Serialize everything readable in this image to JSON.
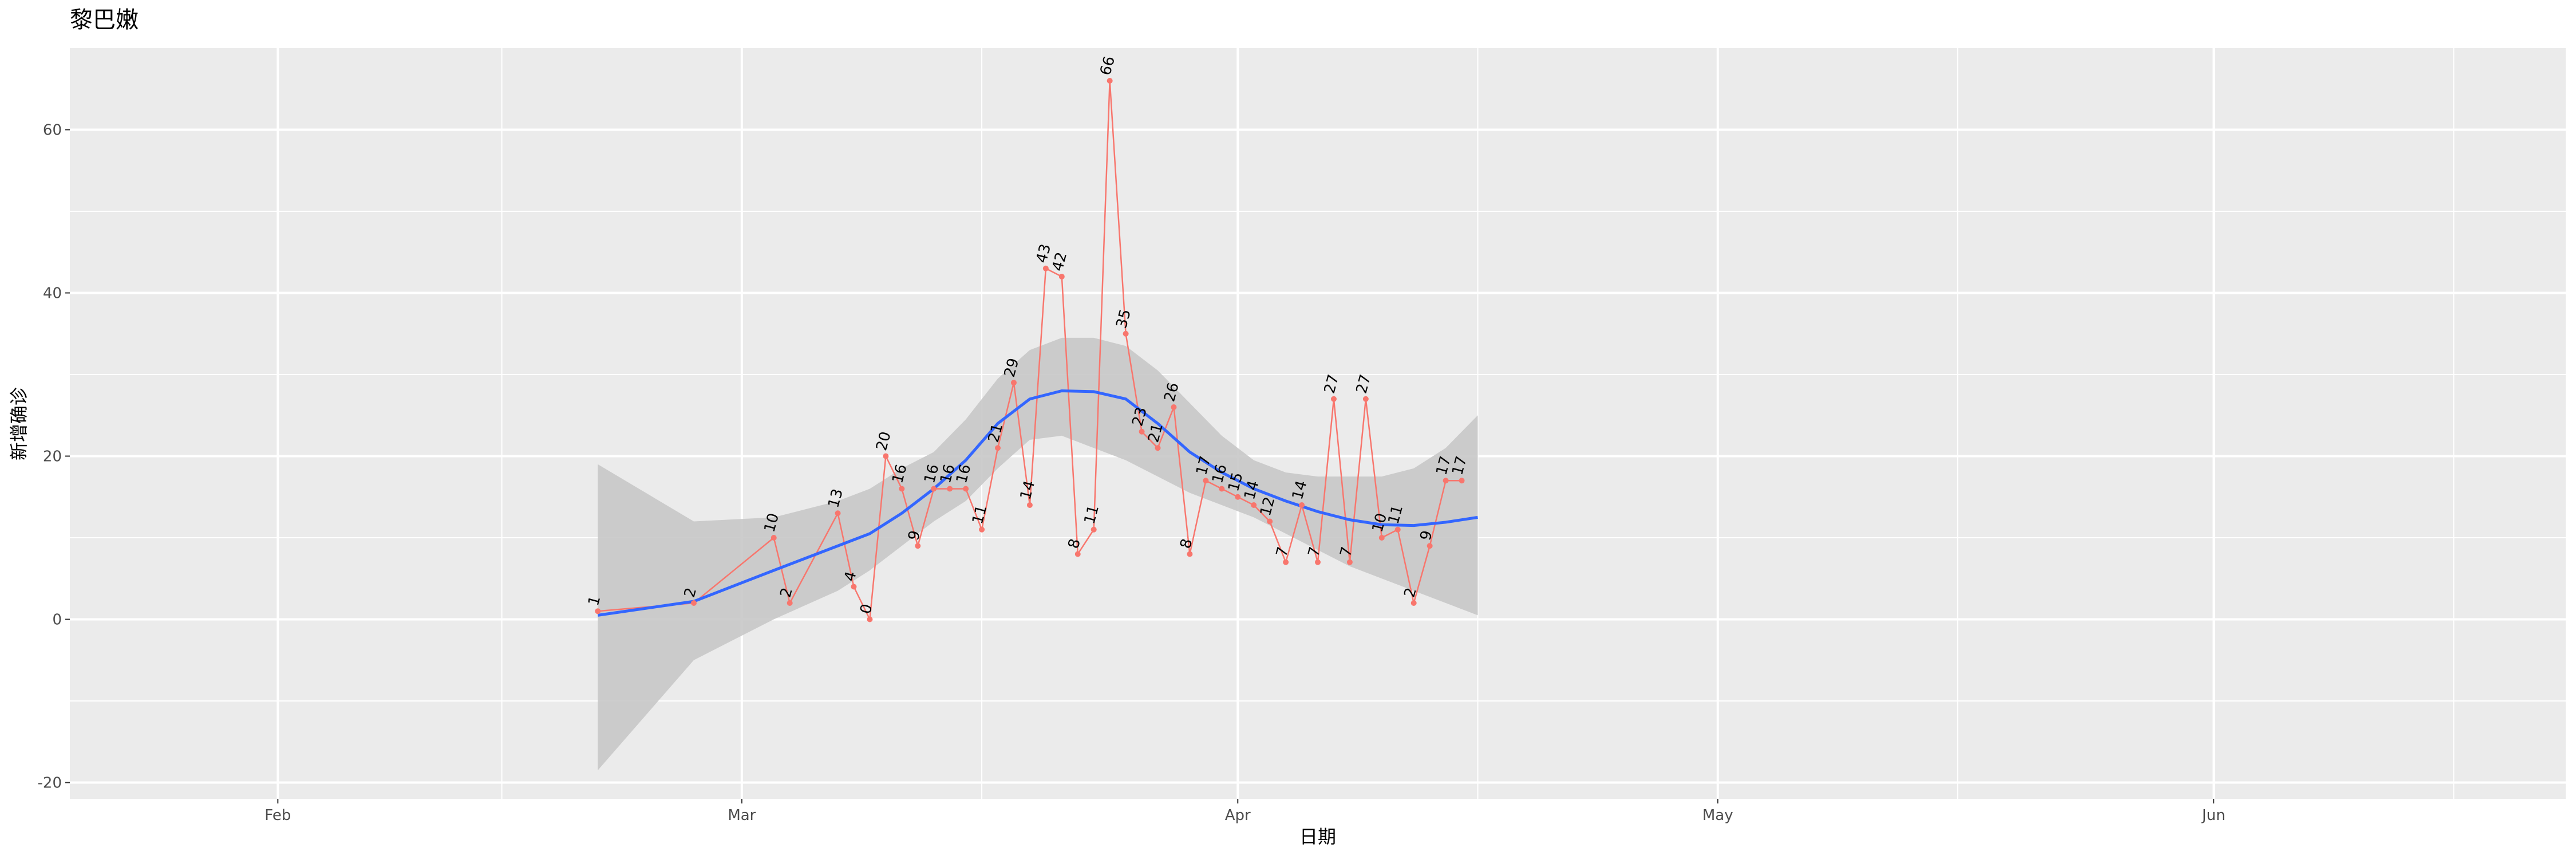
{
  "chart_data": {
    "type": "line",
    "title": "黎巴嫩",
    "xlabel": "日期",
    "ylabel": "新增确诊",
    "x_axis": {
      "type": "date",
      "range": [
        "2020-01-19",
        "2020-06-23"
      ],
      "ticks": [
        {
          "date": "2020-02-01",
          "label": "Feb"
        },
        {
          "date": "2020-03-01",
          "label": "Mar"
        },
        {
          "date": "2020-04-01",
          "label": "Apr"
        },
        {
          "date": "2020-05-01",
          "label": "May"
        },
        {
          "date": "2020-06-01",
          "label": "Jun"
        }
      ],
      "minor_ticks": [
        "2020-01-17",
        "2020-02-15",
        "2020-03-16",
        "2020-04-16",
        "2020-05-16",
        "2020-06-16"
      ]
    },
    "y_axis": {
      "range": [
        -22,
        70
      ],
      "ticks": [
        -20,
        0,
        20,
        40,
        60
      ],
      "minor_ticks": [
        -10,
        10,
        30,
        50
      ]
    },
    "grid": true,
    "colors": {
      "panel": "#ebebeb",
      "grid": "#ffffff",
      "series": "#f8766d",
      "smooth": "#3366ff",
      "band": "#c8c8c8"
    },
    "series": [
      {
        "x": [
          "2020-02-21",
          "2020-02-27",
          "2020-03-03",
          "2020-03-04",
          "2020-03-07",
          "2020-03-08",
          "2020-03-09",
          "2020-03-10",
          "2020-03-11",
          "2020-03-12",
          "2020-03-13",
          "2020-03-14",
          "2020-03-15",
          "2020-03-16",
          "2020-03-17",
          "2020-03-18",
          "2020-03-19",
          "2020-03-20",
          "2020-03-21",
          "2020-03-22",
          "2020-03-23",
          "2020-03-24",
          "2020-03-25",
          "2020-03-26",
          "2020-03-27",
          "2020-03-28",
          "2020-03-29",
          "2020-03-30",
          "2020-03-31",
          "2020-04-01",
          "2020-04-02",
          "2020-04-03",
          "2020-04-04",
          "2020-04-05",
          "2020-04-06",
          "2020-04-07",
          "2020-04-08",
          "2020-04-09",
          "2020-04-10",
          "2020-04-11",
          "2020-04-12",
          "2020-04-13",
          "2020-04-14",
          "2020-04-15"
        ],
        "values": [
          1,
          2,
          10,
          2,
          13,
          4,
          0,
          20,
          16,
          9,
          16,
          16,
          16,
          11,
          21,
          29,
          14,
          43,
          42,
          8,
          11,
          66,
          35,
          23,
          21,
          26,
          8,
          17,
          16,
          15,
          14,
          12,
          7,
          14,
          7,
          27,
          7,
          27,
          10,
          11,
          2,
          9,
          17,
          17
        ]
      }
    ],
    "smooth": {
      "x": [
        "2020-02-21",
        "2020-02-27",
        "2020-03-03",
        "2020-03-07",
        "2020-03-09",
        "2020-03-11",
        "2020-03-13",
        "2020-03-15",
        "2020-03-17",
        "2020-03-19",
        "2020-03-21",
        "2020-03-23",
        "2020-03-25",
        "2020-03-27",
        "2020-03-29",
        "2020-03-31",
        "2020-04-02",
        "2020-04-04",
        "2020-04-06",
        "2020-04-08",
        "2020-04-10",
        "2020-04-12",
        "2020-04-14",
        "2020-04-16"
      ],
      "y": [
        0.5,
        2.2,
        6.0,
        9.0,
        10.5,
        13.0,
        16.0,
        19.5,
        24.0,
        27.0,
        28.0,
        27.9,
        27.0,
        24.0,
        20.5,
        18.0,
        16.0,
        14.5,
        13.2,
        12.2,
        11.6,
        11.5,
        11.9,
        12.5
      ],
      "lower": [
        -18.5,
        -5.0,
        0.0,
        3.5,
        6.0,
        9.0,
        12.0,
        14.5,
        18.5,
        22.0,
        22.5,
        21.0,
        19.5,
        17.5,
        15.5,
        14.0,
        12.5,
        10.5,
        8.5,
        6.5,
        5.0,
        3.5,
        2.0,
        0.5
      ],
      "upper": [
        19.0,
        12.0,
        12.5,
        14.5,
        16.0,
        18.5,
        20.5,
        24.5,
        29.5,
        33.0,
        34.5,
        34.5,
        33.5,
        30.5,
        26.5,
        22.5,
        19.5,
        18.0,
        17.5,
        17.5,
        17.5,
        18.5,
        21.0,
        25.0
      ]
    }
  }
}
